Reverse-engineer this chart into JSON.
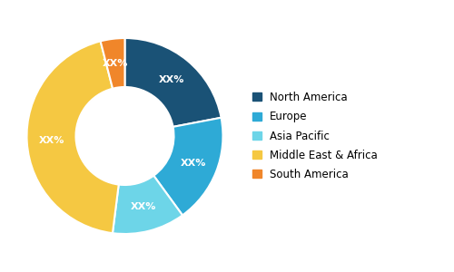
{
  "labels": [
    "North America",
    "Europe",
    "Asia Pacific",
    "Middle East & Africa",
    "South America"
  ],
  "values": [
    22,
    18,
    12,
    44,
    4
  ],
  "colors": [
    "#1a5276",
    "#2eaad6",
    "#6dd5e8",
    "#f5c842",
    "#f0862a"
  ],
  "label_text": [
    "XX%",
    "XX%",
    "XX%",
    "XX%",
    "XX%"
  ],
  "text_color": "#ffffff",
  "background_color": "#ffffff",
  "legend_fontsize": 8.5,
  "label_fontsize": 8,
  "donut_width": 0.5
}
